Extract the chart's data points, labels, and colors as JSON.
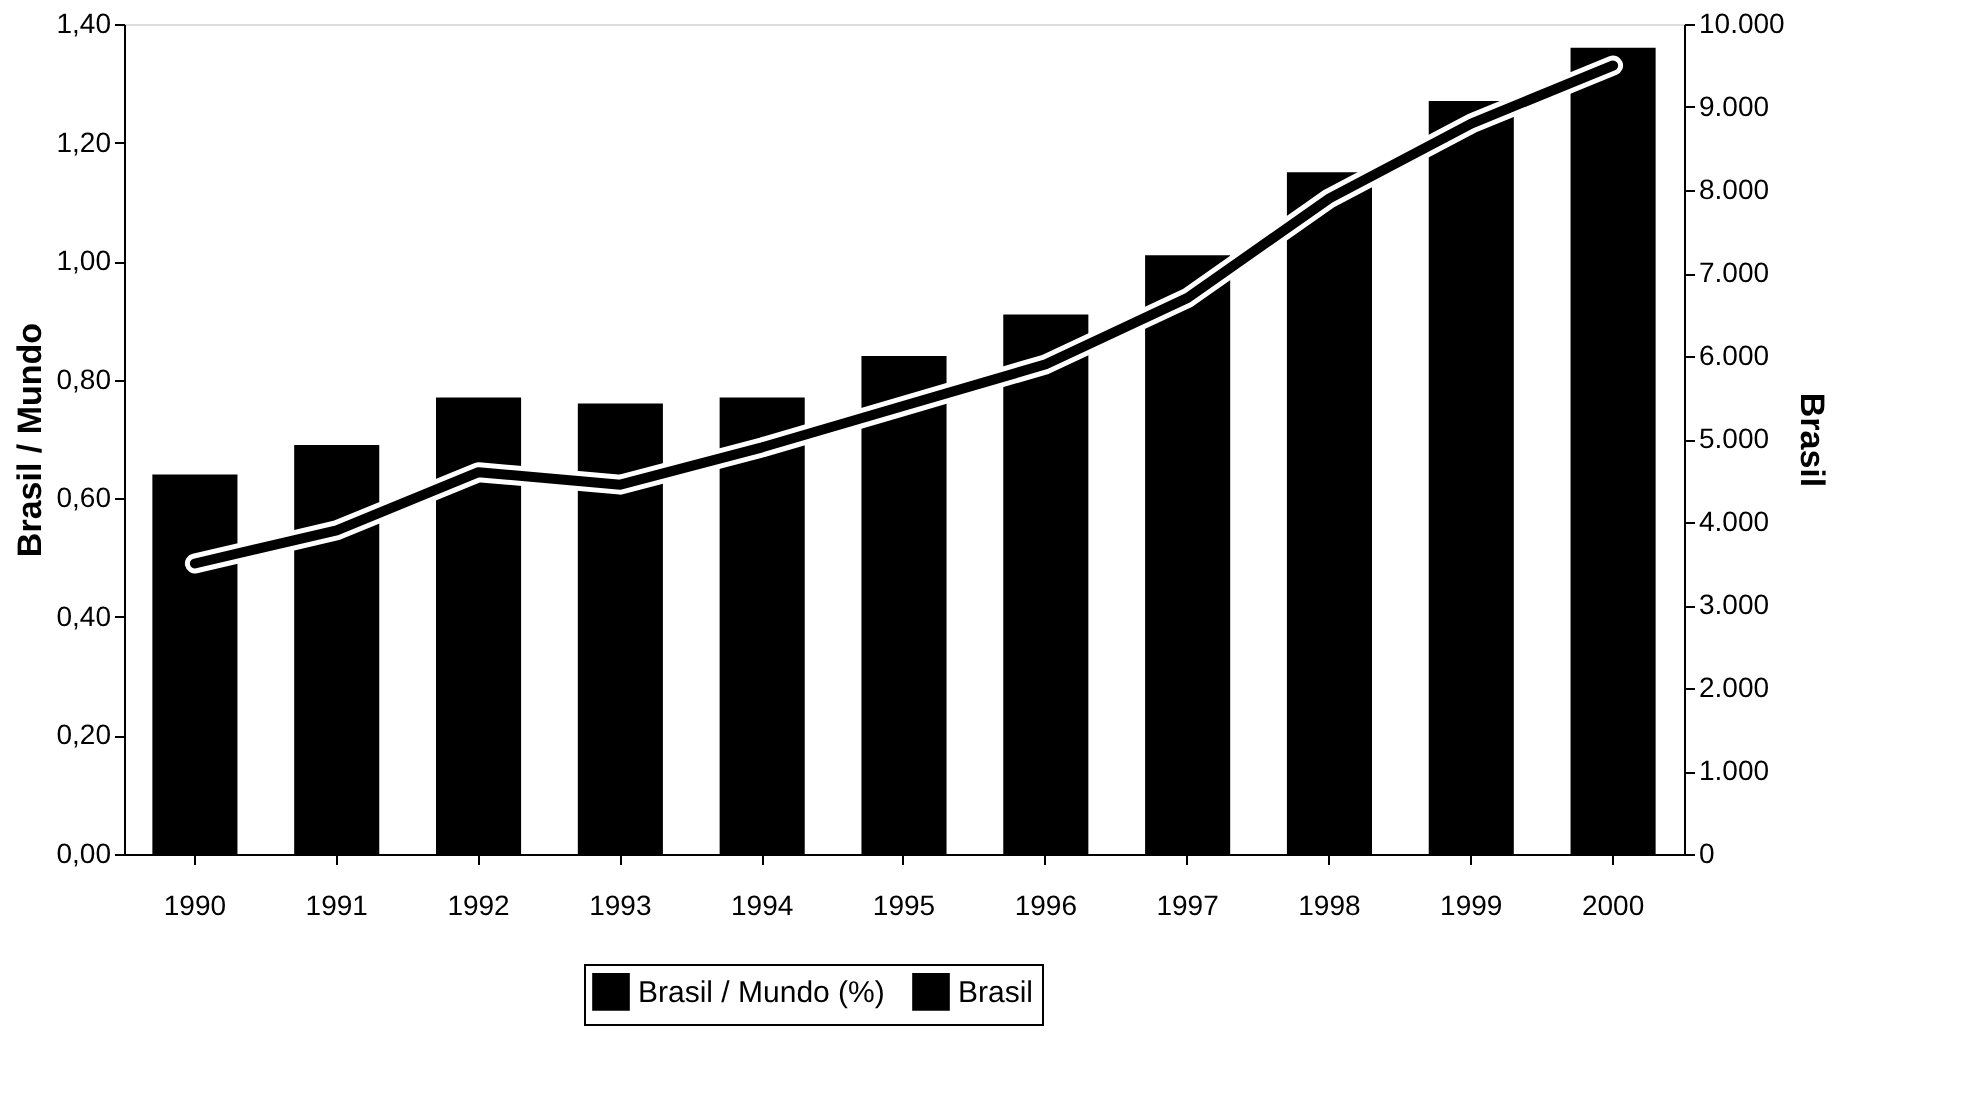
{
  "chart_data": {
    "type": "bar",
    "ylabel": "Brasil / Mundo",
    "y2label": "Brasil",
    "categories": [
      "1990",
      "1991",
      "1992",
      "1993",
      "1994",
      "1995",
      "1996",
      "1997",
      "1998",
      "1999",
      "2000"
    ],
    "series": [
      {
        "name": "Brasil / Mundo (%)",
        "color": "#000000",
        "values": [
          0.64,
          0.69,
          0.77,
          0.76,
          0.77,
          0.84,
          0.91,
          1.01,
          1.15,
          1.27,
          1.36
        ]
      },
      {
        "name": "Brasil",
        "type": "line",
        "axis": "y2",
        "color": "#000000",
        "values": [
          3500,
          3900,
          4600,
          4450,
          4900,
          5400,
          5900,
          6700,
          7900,
          8800,
          9500
        ]
      }
    ],
    "ylim": [
      0,
      1.4
    ],
    "yticks": [
      {
        "value": 0,
        "label": "0,00"
      },
      {
        "value": 0.2,
        "label": "0,20"
      },
      {
        "value": 0.4,
        "label": "0,40"
      },
      {
        "value": 0.6,
        "label": "0,60"
      },
      {
        "value": 0.8,
        "label": "0,80"
      },
      {
        "value": 1.0,
        "label": "1,00"
      },
      {
        "value": 1.2,
        "label": "1,20"
      },
      {
        "value": 1.4,
        "label": "1,40"
      }
    ],
    "y2lim": [
      0,
      10000
    ],
    "y2ticks": [
      0,
      {
        "value": 1000,
        "label": "1.000"
      },
      {
        "value": 2000,
        "label": "2.000"
      },
      {
        "value": 3000,
        "label": "3.000"
      },
      {
        "value": 4000,
        "label": "4.000"
      },
      {
        "value": 5000,
        "label": "5.000"
      },
      {
        "value": 6000,
        "label": "6.000"
      },
      {
        "value": 7000,
        "label": "7.000"
      },
      {
        "value": 8000,
        "label": "8.000"
      },
      {
        "value": 9000,
        "label": "9.000"
      },
      {
        "value": 10000,
        "label": "10.000"
      }
    ],
    "legend": "bottom",
    "grid": false,
    "line_style": "solid"
  }
}
